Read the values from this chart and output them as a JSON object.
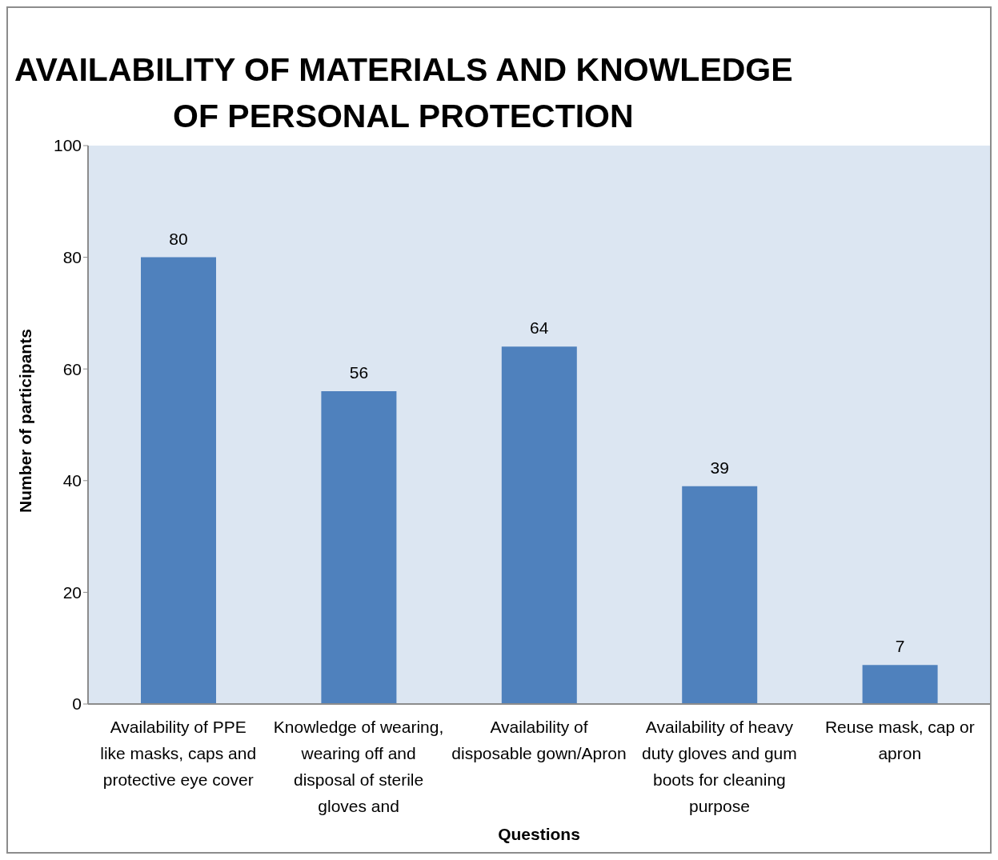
{
  "chart_data": {
    "type": "bar",
    "title": "AVAILABILITY OF MATERIALS AND KNOWLEDGE\nOF PERSONAL PROTECTION",
    "xlabel": "Questions",
    "ylabel": "Number of participants",
    "categories": [
      "Availability of PPE like masks, caps and protective eye cover",
      "Knowledge of wearing, wearing off and disposal of sterile gloves and",
      "Availability of disposable gown/Apron",
      "Availability of heavy duty gloves and gum boots for cleaning purpose",
      "Reuse mask, cap or apron"
    ],
    "values": [
      80,
      56,
      64,
      39,
      7
    ],
    "color": "#4f81bd",
    "ylim": [
      0,
      100
    ],
    "yticks": [
      0,
      20,
      40,
      60,
      80,
      100
    ],
    "data_labels": true
  }
}
